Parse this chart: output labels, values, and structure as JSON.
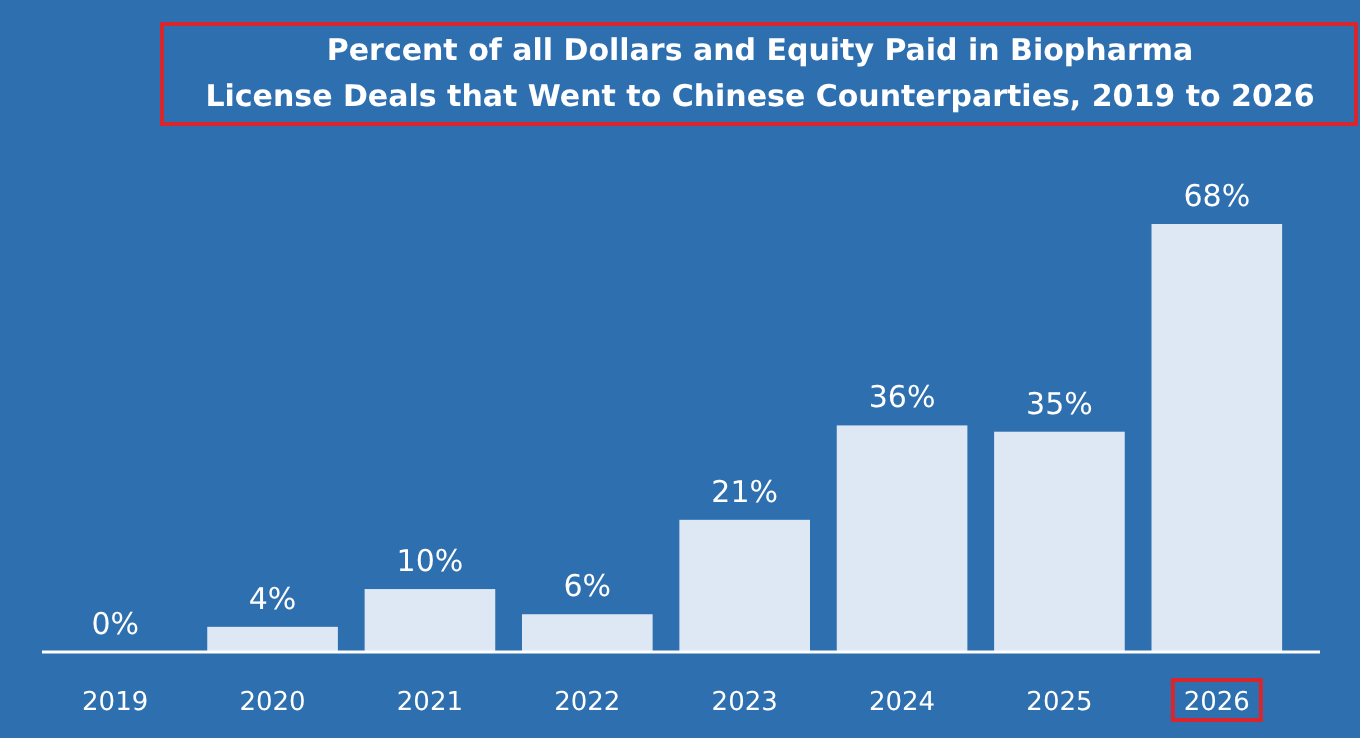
{
  "chart_data": {
    "type": "bar",
    "title": "Percent of all Dollars and Equity Paid in Biopharma\nLicense Deals that Went to Chinese Counterparties, 2019 to 2026",
    "categories": [
      "2019",
      "2020",
      "2021",
      "2022",
      "2023",
      "2024",
      "2025",
      "2026"
    ],
    "values": [
      0,
      4,
      10,
      6,
      21,
      36,
      35,
      68
    ],
    "value_labels": [
      "0%",
      "4%",
      "10%",
      "6%",
      "21%",
      "36%",
      "35%",
      "68%"
    ],
    "color": "#dde8f4"
  }
}
